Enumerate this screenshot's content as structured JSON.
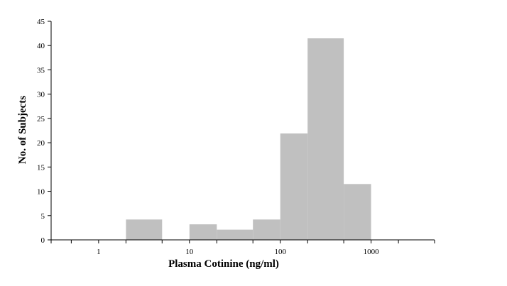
{
  "chart_data": {
    "type": "bar",
    "title": "",
    "xlabel": "Plasma Cotinine (ng/ml)",
    "ylabel": "No. of Subjects",
    "x_scale": "log",
    "xlim": [
      0.3,
      5000
    ],
    "ylim": [
      0,
      45
    ],
    "y_ticks": [
      0,
      5,
      10,
      15,
      20,
      25,
      30,
      35,
      40,
      45
    ],
    "x_tick_labels": [
      "1",
      "10",
      "100",
      "1000"
    ],
    "x_tick_label_values": [
      1,
      10,
      100,
      1000
    ],
    "x_minor_ticks": [
      0.3,
      0.5,
      1,
      2,
      5,
      10,
      20,
      50,
      100,
      200,
      500,
      1000,
      2000,
      5000
    ],
    "bins": [
      {
        "from": 2,
        "to": 5,
        "value": 4.2
      },
      {
        "from": 10,
        "to": 20,
        "value": 3.2
      },
      {
        "from": 20,
        "to": 50,
        "value": 2.1
      },
      {
        "from": 50,
        "to": 100,
        "value": 4.2
      },
      {
        "from": 100,
        "to": 200,
        "value": 21.9
      },
      {
        "from": 200,
        "to": 500,
        "value": 41.5
      },
      {
        "from": 500,
        "to": 1000,
        "value": 11.5
      }
    ],
    "bar_color": "#c0c0c0",
    "grid": false,
    "legend": "none"
  }
}
